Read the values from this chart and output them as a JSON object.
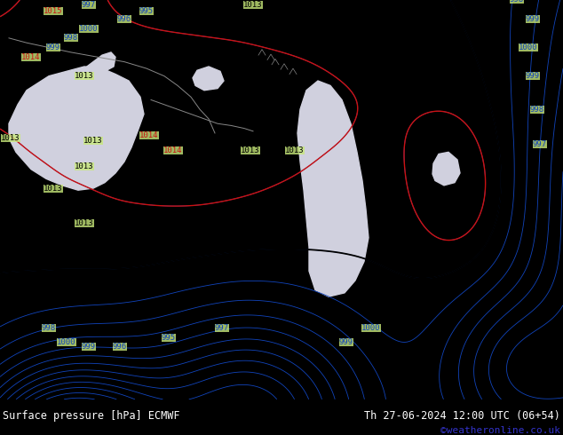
{
  "title_left": "Surface pressure [hPa] ECMWF",
  "title_right": "Th 27-06-2024 12:00 UTC (06+54)",
  "watermark": "©weatheronline.co.uk",
  "bg_color": "#c8e87a",
  "sea_color": "#d0d0de",
  "footer_text_color": "#ffffff",
  "watermark_color": "#3333cc",
  "contour_blue_color": "#1144bb",
  "contour_black_color": "#000000",
  "contour_red_color": "#cc1111",
  "label_blue_color": "#1144bb",
  "label_black_color": "#000000",
  "label_red_color": "#cc1111",
  "coast_color": "#888888",
  "figsize": [
    6.34,
    4.9
  ],
  "dpi": 100
}
